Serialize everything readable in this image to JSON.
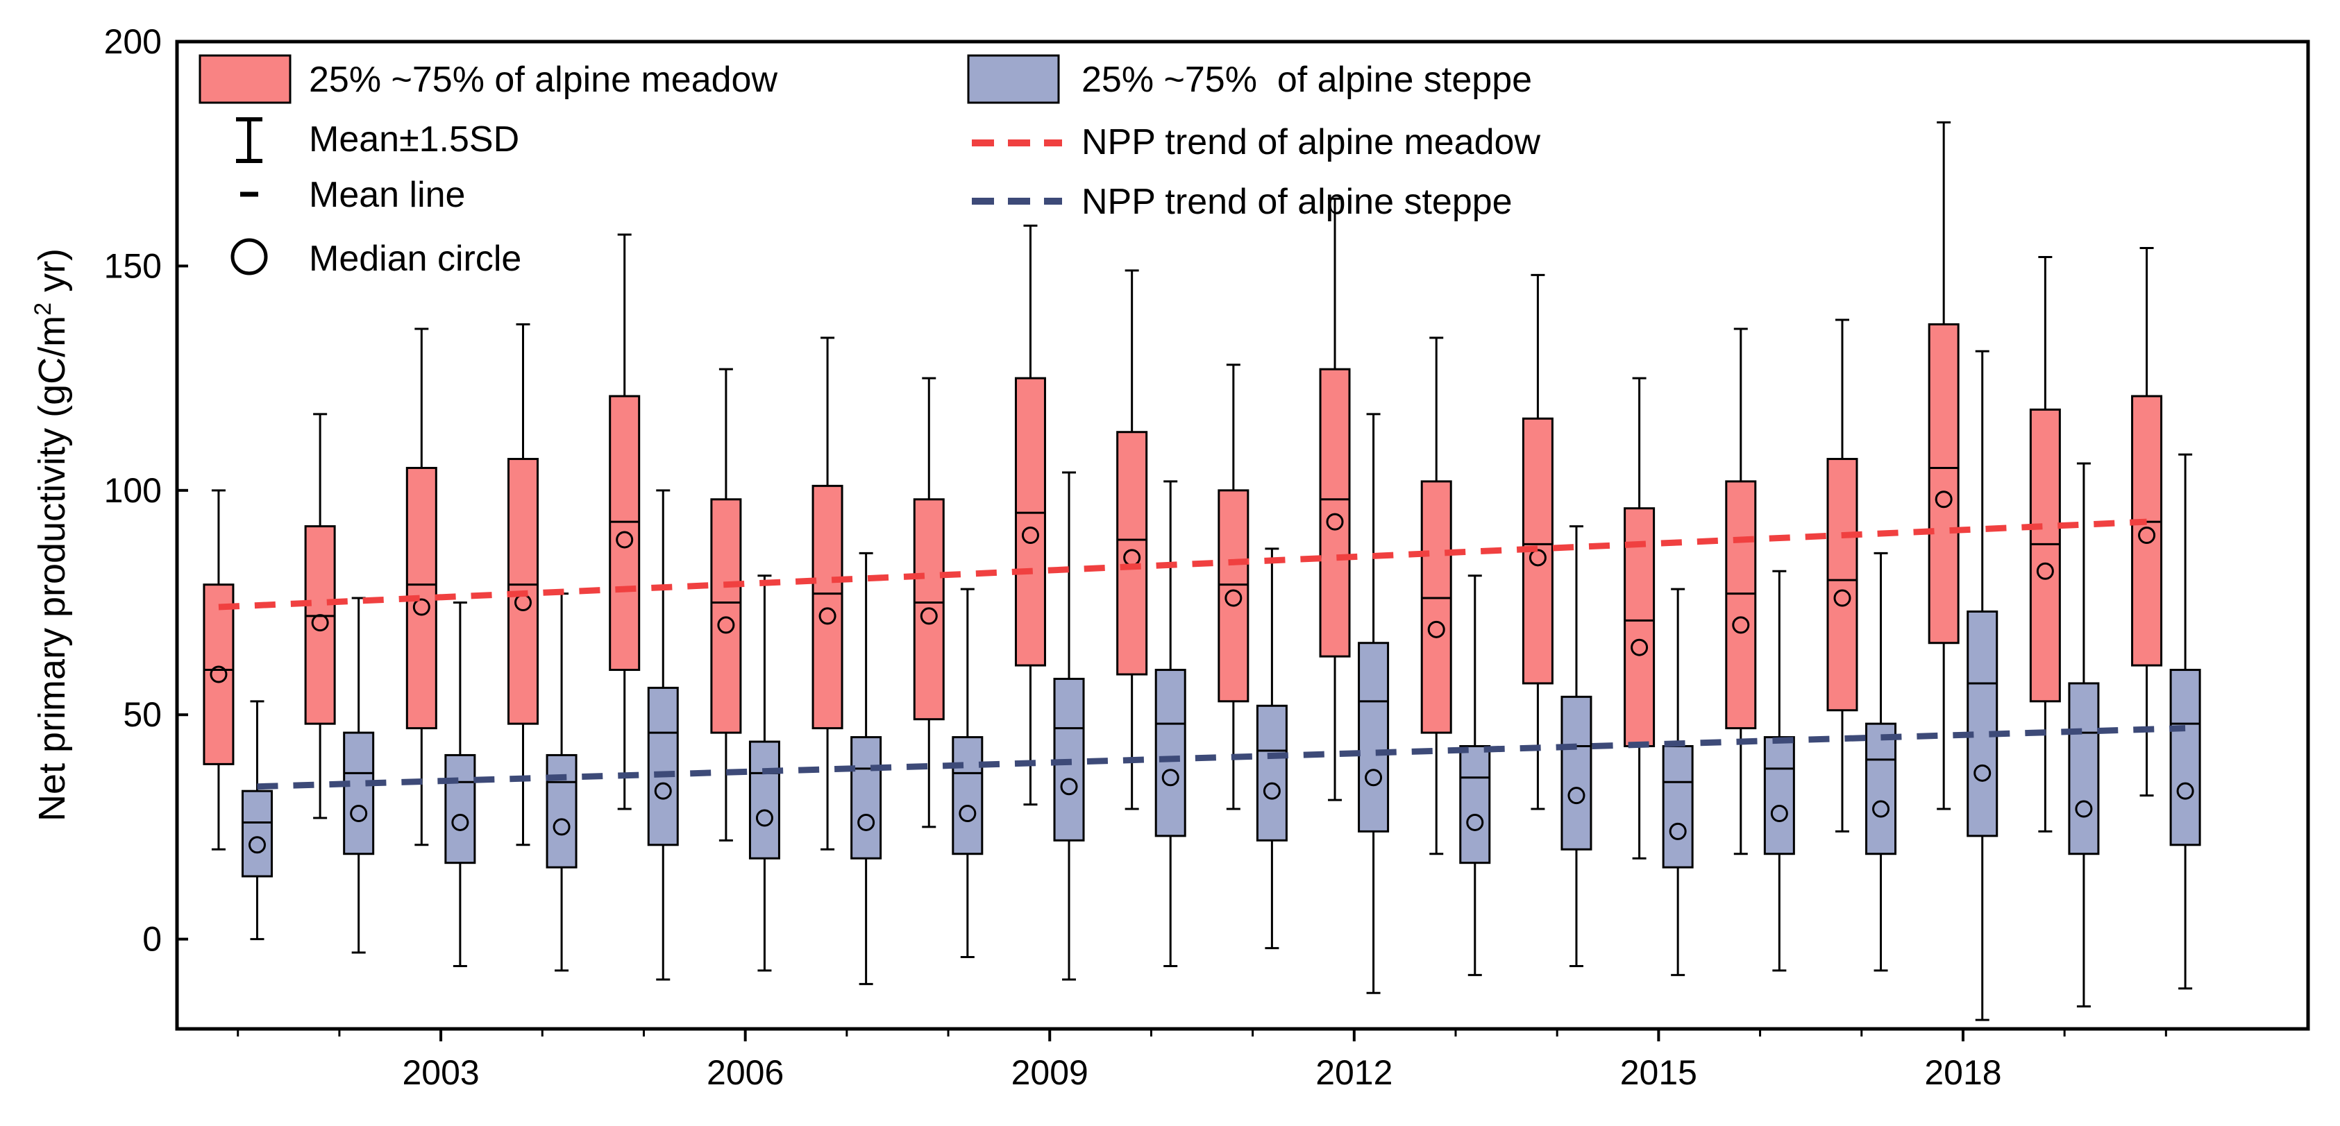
{
  "chart_data": {
    "type": "box",
    "title": "",
    "xlabel": "",
    "ylabel": "Net primary productivity (gC/m² yr)",
    "ylabel_parts": {
      "pre": "Net primary productivity (gC/m",
      "sup": "2",
      "post": " yr)"
    },
    "ylim": [
      -20,
      200
    ],
    "yticks": [
      0,
      50,
      100,
      150,
      200
    ],
    "xlim": [
      2000.4,
      2021.4
    ],
    "xticks_major": [
      2003,
      2006,
      2009,
      2012,
      2015,
      2018
    ],
    "xticks_minor": [
      2001,
      2002,
      2004,
      2005,
      2007,
      2008,
      2010,
      2011,
      2013,
      2014,
      2016,
      2017,
      2019,
      2020
    ],
    "years": [
      2001,
      2002,
      2003,
      2004,
      2005,
      2006,
      2007,
      2008,
      2009,
      2010,
      2011,
      2012,
      2013,
      2014,
      2015,
      2016,
      2017,
      2018,
      2019,
      2020
    ],
    "series": [
      {
        "name": "alpine meadow",
        "color": "#f98383",
        "trend_color": "#f04040",
        "boxes": [
          {
            "year": 2001,
            "q1": 39,
            "q3": 79,
            "mean": 60,
            "median": 59,
            "low": 20,
            "high": 100
          },
          {
            "year": 2002,
            "q1": 48,
            "q3": 92,
            "mean": 72,
            "median": 70.5,
            "low": 27,
            "high": 117
          },
          {
            "year": 2003,
            "q1": 47,
            "q3": 105,
            "mean": 79,
            "median": 74,
            "low": 21,
            "high": 136
          },
          {
            "year": 2004,
            "q1": 48,
            "q3": 107,
            "mean": 79,
            "median": 75,
            "low": 21,
            "high": 137
          },
          {
            "year": 2005,
            "q1": 60,
            "q3": 121,
            "mean": 93,
            "median": 89,
            "low": 29,
            "high": 157
          },
          {
            "year": 2006,
            "q1": 46,
            "q3": 98,
            "mean": 75,
            "median": 70,
            "low": 22,
            "high": 127
          },
          {
            "year": 2007,
            "q1": 47,
            "q3": 101,
            "mean": 77,
            "median": 72,
            "low": 20,
            "high": 134
          },
          {
            "year": 2008,
            "q1": 49,
            "q3": 98,
            "mean": 75,
            "median": 72,
            "low": 25,
            "high": 125
          },
          {
            "year": 2009,
            "q1": 61,
            "q3": 125,
            "mean": 95,
            "median": 90,
            "low": 30,
            "high": 159
          },
          {
            "year": 2010,
            "q1": 59,
            "q3": 113,
            "mean": 89,
            "median": 85,
            "low": 29,
            "high": 149
          },
          {
            "year": 2011,
            "q1": 53,
            "q3": 100,
            "mean": 79,
            "median": 76,
            "low": 29,
            "high": 128
          },
          {
            "year": 2012,
            "q1": 63,
            "q3": 127,
            "mean": 98,
            "median": 93,
            "low": 31,
            "high": 165
          },
          {
            "year": 2013,
            "q1": 46,
            "q3": 102,
            "mean": 76,
            "median": 69,
            "low": 19,
            "high": 134
          },
          {
            "year": 2014,
            "q1": 57,
            "q3": 116,
            "mean": 88,
            "median": 85,
            "low": 29,
            "high": 148
          },
          {
            "year": 2015,
            "q1": 43,
            "q3": 96,
            "mean": 71,
            "median": 65,
            "low": 18,
            "high": 125
          },
          {
            "year": 2016,
            "q1": 47,
            "q3": 102,
            "mean": 77,
            "median": 70,
            "low": 19,
            "high": 136
          },
          {
            "year": 2017,
            "q1": 51,
            "q3": 107,
            "mean": 80,
            "median": 76,
            "low": 24,
            "high": 138
          },
          {
            "year": 2018,
            "q1": 66,
            "q3": 137,
            "mean": 105,
            "median": 98,
            "low": 29,
            "high": 182
          },
          {
            "year": 2019,
            "q1": 53,
            "q3": 118,
            "mean": 88,
            "median": 82,
            "low": 24,
            "high": 152
          },
          {
            "year": 2020,
            "q1": 61,
            "q3": 121,
            "mean": 93,
            "median": 90,
            "low": 32,
            "high": 154
          }
        ],
        "trend": {
          "start": [
            2001,
            74
          ],
          "end": [
            2020,
            93
          ]
        }
      },
      {
        "name": "alpine steppe",
        "color": "#9ea8cc",
        "trend_color": "#3d4a78",
        "boxes": [
          {
            "year": 2001,
            "q1": 14,
            "q3": 33,
            "mean": 26,
            "median": 21,
            "low": 0,
            "high": 53
          },
          {
            "year": 2002,
            "q1": 19,
            "q3": 46,
            "mean": 37,
            "median": 28,
            "low": -3,
            "high": 76
          },
          {
            "year": 2003,
            "q1": 17,
            "q3": 41,
            "mean": 35,
            "median": 26,
            "low": -6,
            "high": 75
          },
          {
            "year": 2004,
            "q1": 16,
            "q3": 41,
            "mean": 35,
            "median": 25,
            "low": -7,
            "high": 77
          },
          {
            "year": 2005,
            "q1": 21,
            "q3": 56,
            "mean": 46,
            "median": 33,
            "low": -9,
            "high": 100
          },
          {
            "year": 2006,
            "q1": 18,
            "q3": 44,
            "mean": 37,
            "median": 27,
            "low": -7,
            "high": 81
          },
          {
            "year": 2007,
            "q1": 18,
            "q3": 45,
            "mean": 38,
            "median": 26,
            "low": -10,
            "high": 86
          },
          {
            "year": 2008,
            "q1": 19,
            "q3": 45,
            "mean": 37,
            "median": 28,
            "low": -4,
            "high": 78
          },
          {
            "year": 2009,
            "q1": 22,
            "q3": 58,
            "mean": 47,
            "median": 34,
            "low": -9,
            "high": 104
          },
          {
            "year": 2010,
            "q1": 23,
            "q3": 60,
            "mean": 48,
            "median": 36,
            "low": -6,
            "high": 102
          },
          {
            "year": 2011,
            "q1": 22,
            "q3": 52,
            "mean": 42,
            "median": 33,
            "low": -2,
            "high": 87
          },
          {
            "year": 2012,
            "q1": 24,
            "q3": 66,
            "mean": 53,
            "median": 36,
            "low": -12,
            "high": 117
          },
          {
            "year": 2013,
            "q1": 17,
            "q3": 43,
            "mean": 36,
            "median": 26,
            "low": -8,
            "high": 81
          },
          {
            "year": 2014,
            "q1": 20,
            "q3": 54,
            "mean": 43,
            "median": 32,
            "low": -6,
            "high": 92
          },
          {
            "year": 2015,
            "q1": 16,
            "q3": 43,
            "mean": 35,
            "median": 24,
            "low": -8,
            "high": 78
          },
          {
            "year": 2016,
            "q1": 19,
            "q3": 45,
            "mean": 38,
            "median": 28,
            "low": -7,
            "high": 82
          },
          {
            "year": 2017,
            "q1": 19,
            "q3": 48,
            "mean": 40,
            "median": 29,
            "low": -7,
            "high": 86
          },
          {
            "year": 2018,
            "q1": 23,
            "q3": 73,
            "mean": 57,
            "median": 37,
            "low": -18,
            "high": 131
          },
          {
            "year": 2019,
            "q1": 19,
            "q3": 57,
            "mean": 46,
            "median": 29,
            "low": -15,
            "high": 106
          },
          {
            "year": 2020,
            "q1": 21,
            "q3": 60,
            "mean": 48,
            "median": 33,
            "low": -11,
            "high": 108
          }
        ],
        "trend": {
          "start": [
            2001,
            34
          ],
          "end": [
            2020,
            47
          ]
        }
      }
    ],
    "legend": {
      "meadow_box": "25% ~75% of alpine meadow",
      "steppe_box": "25% ~75%  of alpine steppe",
      "whisker": "Mean±1.5SD",
      "mean_line": "Mean line",
      "median_circle": "Median circle",
      "meadow_trend": "NPP trend of alpine meadow",
      "steppe_trend": "NPP trend of alpine steppe"
    }
  }
}
